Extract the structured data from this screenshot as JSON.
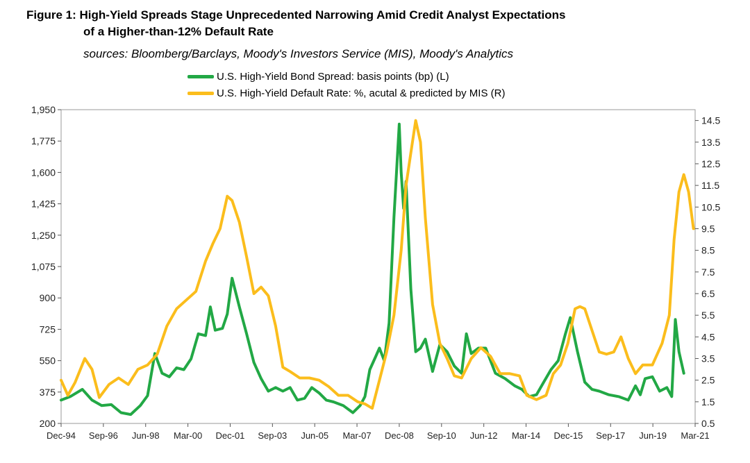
{
  "title_line1": "Figure 1: High-Yield Spreads Stage Unprecedented Narrowing Amid Credit Analyst Expectations",
  "title_line2": "of a Higher-than-12% Default Rate",
  "sources": "sources: Bloomberg/Barclays, Moody's Investors Service (MIS), Moody's Analytics",
  "colors": {
    "spread": "#22a845",
    "default": "#fbbd1c",
    "axis": "#555555"
  },
  "chart_data": {
    "type": "line",
    "title": "High-Yield Spreads Stage Unprecedented Narrowing Amid Credit Analyst Expectations of a Higher-than-12% Default Rate",
    "x_range": [
      1994.92,
      2021.17
    ],
    "y_left": {
      "label": "basis points (bp)",
      "range": [
        200,
        1950
      ],
      "ticks": [
        200,
        375,
        550,
        725,
        900,
        1075,
        1250,
        1425,
        1600,
        1775,
        1950
      ],
      "tick_labels": [
        "200",
        "375",
        "550",
        "725",
        "900",
        "1,075",
        "1,250",
        "1,425",
        "1,600",
        "1,775",
        "1,950"
      ]
    },
    "y_right": {
      "label": "%",
      "range": [
        0.5,
        15.0
      ],
      "ticks": [
        0.5,
        1.5,
        2.5,
        3.5,
        4.5,
        5.5,
        6.5,
        7.5,
        8.5,
        9.5,
        10.5,
        11.5,
        12.5,
        13.5,
        14.5
      ],
      "tick_labels": [
        "0.5",
        "1.5",
        "2.5",
        "3.5",
        "4.5",
        "5.5",
        "6.5",
        "7.5",
        "8.5",
        "9.5",
        "10.5",
        "11.5",
        "12.5",
        "13.5",
        "14.5"
      ]
    },
    "x_ticks": [
      1994.92,
      1996.67,
      1998.42,
      2000.17,
      2001.92,
      2003.67,
      2005.42,
      2007.17,
      2008.92,
      2010.67,
      2012.42,
      2014.17,
      2015.92,
      2017.67,
      2019.42,
      2021.17
    ],
    "x_tick_labels": [
      "Dec-94",
      "Sep-96",
      "Jun-98",
      "Mar-00",
      "Dec-01",
      "Sep-03",
      "Jun-05",
      "Mar-07",
      "Dec-08",
      "Sep-10",
      "Jun-12",
      "Mar-14",
      "Dec-15",
      "Sep-17",
      "Jun-19",
      "Mar-21"
    ],
    "series": [
      {
        "name": "U.S. High-Yield Bond Spread: basis points (bp) (L)",
        "axis": "left",
        "x": [
          1994.92,
          1995.3,
          1995.8,
          1996.2,
          1996.6,
          1997.0,
          1997.4,
          1997.8,
          1998.2,
          1998.5,
          1998.8,
          1999.1,
          1999.4,
          1999.7,
          2000.0,
          2000.3,
          2000.6,
          2000.9,
          2001.1,
          2001.3,
          2001.6,
          2001.8,
          2002.0,
          2002.3,
          2002.6,
          2002.9,
          2003.2,
          2003.5,
          2003.8,
          2004.1,
          2004.4,
          2004.7,
          2005.0,
          2005.3,
          2005.6,
          2005.9,
          2006.2,
          2006.6,
          2007.0,
          2007.3,
          2007.5,
          2007.7,
          2007.9,
          2008.1,
          2008.3,
          2008.5,
          2008.7,
          2008.92,
          2009.0,
          2009.1,
          2009.2,
          2009.4,
          2009.6,
          2009.8,
          2010.0,
          2010.3,
          2010.6,
          2010.9,
          2011.2,
          2011.5,
          2011.7,
          2011.9,
          2012.2,
          2012.5,
          2012.9,
          2013.3,
          2013.7,
          2014.0,
          2014.3,
          2014.6,
          2014.9,
          2015.2,
          2015.5,
          2015.8,
          2016.0,
          2016.3,
          2016.6,
          2016.9,
          2017.2,
          2017.6,
          2018.0,
          2018.4,
          2018.7,
          2018.9,
          2019.1,
          2019.4,
          2019.7,
          2020.0,
          2020.2,
          2020.35,
          2020.5,
          2020.7
        ],
        "values": [
          330,
          350,
          390,
          330,
          300,
          305,
          260,
          250,
          300,
          355,
          590,
          480,
          460,
          510,
          500,
          560,
          700,
          690,
          850,
          720,
          730,
          810,
          1010,
          850,
          700,
          540,
          450,
          380,
          400,
          380,
          400,
          330,
          340,
          400,
          370,
          330,
          320,
          300,
          260,
          300,
          350,
          500,
          560,
          620,
          550,
          760,
          1350,
          1870,
          1600,
          1400,
          1550,
          950,
          600,
          620,
          670,
          490,
          640,
          600,
          520,
          480,
          700,
          590,
          620,
          620,
          480,
          450,
          410,
          390,
          350,
          360,
          430,
          500,
          550,
          700,
          790,
          600,
          430,
          390,
          380,
          360,
          350,
          330,
          410,
          360,
          450,
          460,
          380,
          400,
          350,
          780,
          600,
          480
        ]
      },
      {
        "name": "U.S. High-Yield Default Rate: %, acutal & predicted by MIS (R)",
        "axis": "right",
        "x": [
          1994.92,
          1995.2,
          1995.5,
          1995.9,
          1996.2,
          1996.5,
          1996.9,
          1997.3,
          1997.7,
          1998.1,
          1998.5,
          1998.9,
          1999.3,
          1999.7,
          2000.1,
          2000.5,
          2000.9,
          2001.2,
          2001.5,
          2001.8,
          2002.0,
          2002.3,
          2002.6,
          2002.9,
          2003.2,
          2003.5,
          2003.8,
          2004.1,
          2004.4,
          2004.8,
          2005.2,
          2005.6,
          2006.0,
          2006.4,
          2006.8,
          2007.2,
          2007.5,
          2007.8,
          2008.1,
          2008.4,
          2008.7,
          2009.0,
          2009.2,
          2009.4,
          2009.6,
          2009.8,
          2010.0,
          2010.3,
          2010.6,
          2010.9,
          2011.2,
          2011.5,
          2011.9,
          2012.3,
          2012.7,
          2013.1,
          2013.5,
          2013.9,
          2014.2,
          2014.6,
          2015.0,
          2015.3,
          2015.6,
          2015.9,
          2016.2,
          2016.4,
          2016.6,
          2016.9,
          2017.2,
          2017.5,
          2017.8,
          2018.1,
          2018.4,
          2018.7,
          2019.0,
          2019.4,
          2019.8,
          2020.1,
          2020.3,
          2020.5,
          2020.7,
          2020.9,
          2021.1
        ],
        "values": [
          2.5,
          1.8,
          2.4,
          3.5,
          3.0,
          1.7,
          2.3,
          2.6,
          2.3,
          3.0,
          3.2,
          3.7,
          5.0,
          5.8,
          6.2,
          6.6,
          8.0,
          8.8,
          9.5,
          11.0,
          10.8,
          9.8,
          8.2,
          6.5,
          6.8,
          6.4,
          5.0,
          3.1,
          2.9,
          2.6,
          2.6,
          2.5,
          2.2,
          1.8,
          1.8,
          1.5,
          1.4,
          1.2,
          2.5,
          3.8,
          5.5,
          8.5,
          11.5,
          13.0,
          14.5,
          13.5,
          10.0,
          6.0,
          4.2,
          3.5,
          2.7,
          2.6,
          3.5,
          4.0,
          3.6,
          2.8,
          2.8,
          2.7,
          1.8,
          1.6,
          1.8,
          2.8,
          3.2,
          4.2,
          5.8,
          5.9,
          5.8,
          4.8,
          3.8,
          3.7,
          3.8,
          4.5,
          3.5,
          2.8,
          3.2,
          3.2,
          4.2,
          5.5,
          9.0,
          11.2,
          12.0,
          11.2,
          9.5
        ]
      }
    ]
  }
}
